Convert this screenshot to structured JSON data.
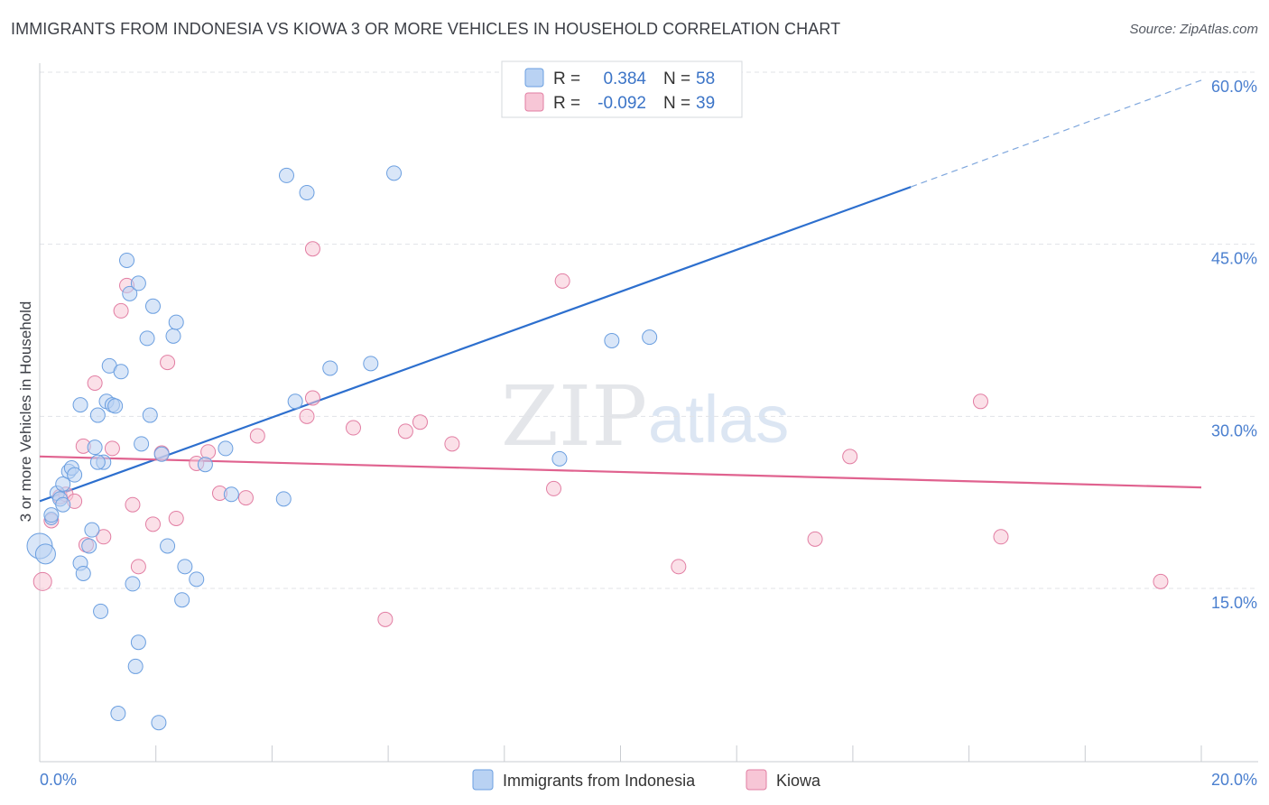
{
  "title": "IMMIGRANTS FROM INDONESIA VS KIOWA 3 OR MORE VEHICLES IN HOUSEHOLD CORRELATION CHART",
  "source": "Source: ZipAtlas.com",
  "watermark": {
    "zip": "ZIP",
    "atlas": "atlas"
  },
  "colors": {
    "blue": "#6b9fe0",
    "blue_fill": "#b9d2f3",
    "pink": "#e27ea3",
    "pink_fill": "#f7c6d6",
    "blue_line": "#2d6fce",
    "pink_line": "#e0628f"
  },
  "legend": {
    "rows": [
      {
        "r_label": "R =",
        "r_value": "0.384",
        "n_label": "N =",
        "n_value": "58"
      },
      {
        "r_label": "R =",
        "r_value": "-0.092",
        "n_label": "N =",
        "n_value": "39"
      }
    ]
  },
  "bottom_legend": [
    "Immigrants from Indonesia",
    "Kiowa"
  ],
  "chart_data": {
    "type": "scatter",
    "title": "IMMIGRANTS FROM INDONESIA VS KIOWA 3 OR MORE VEHICLES IN HOUSEHOLD CORRELATION CHART",
    "xlabel": "",
    "ylabel": "3 or more Vehicles in Household",
    "xlim": [
      0,
      20
    ],
    "ylim": [
      0,
      61
    ],
    "x_tick_labels": [
      "0.0%",
      "20.0%"
    ],
    "y_ticks": [
      15,
      30,
      45,
      60
    ],
    "y_tick_labels": [
      "15.0%",
      "30.0%",
      "45.0%",
      "60.0%"
    ],
    "series": [
      {
        "name": "Immigrants from Indonesia",
        "r": 0.384,
        "n": 58,
        "trend": {
          "x0": 0,
          "y0": 22.6,
          "x1": 15.0,
          "y1": 50.0,
          "dash_x1": 20,
          "dash_y1": 59.3
        },
        "points": [
          [
            0.0,
            18.7,
            14
          ],
          [
            0.1,
            18.0,
            11
          ],
          [
            0.2,
            21.1,
            7
          ],
          [
            0.2,
            21.4,
            8
          ],
          [
            0.3,
            23.3,
            8
          ],
          [
            0.35,
            22.8,
            8
          ],
          [
            0.4,
            22.3,
            8
          ],
          [
            0.4,
            24.1,
            8
          ],
          [
            0.5,
            25.2,
            8
          ],
          [
            0.55,
            25.5,
            8
          ],
          [
            0.6,
            24.9,
            8
          ],
          [
            0.7,
            31.0,
            8
          ],
          [
            0.7,
            17.2,
            8
          ],
          [
            0.75,
            16.3,
            8
          ],
          [
            0.85,
            18.7,
            8
          ],
          [
            0.9,
            20.1,
            8
          ],
          [
            0.95,
            27.3,
            8
          ],
          [
            1.0,
            30.1,
            8
          ],
          [
            1.05,
            13.0,
            8
          ],
          [
            1.1,
            26.0,
            8
          ],
          [
            1.15,
            31.3,
            8
          ],
          [
            1.2,
            34.4,
            8
          ],
          [
            1.25,
            31.0,
            8
          ],
          [
            1.3,
            30.9,
            8
          ],
          [
            1.35,
            4.1,
            8
          ],
          [
            1.4,
            33.9,
            8
          ],
          [
            1.5,
            43.6,
            8
          ],
          [
            1.55,
            40.7,
            8
          ],
          [
            1.6,
            15.4,
            8
          ],
          [
            1.65,
            8.2,
            8
          ],
          [
            1.7,
            10.3,
            8
          ],
          [
            1.7,
            41.6,
            8
          ],
          [
            1.75,
            27.6,
            8
          ],
          [
            1.85,
            36.8,
            8
          ],
          [
            1.9,
            30.1,
            8
          ],
          [
            1.95,
            39.6,
            8
          ],
          [
            2.05,
            3.3,
            8
          ],
          [
            2.1,
            26.7,
            8
          ],
          [
            2.2,
            18.7,
            8
          ],
          [
            2.3,
            37.0,
            8
          ],
          [
            2.35,
            38.2,
            8
          ],
          [
            2.45,
            14.0,
            8
          ],
          [
            2.5,
            16.9,
            8
          ],
          [
            2.7,
            15.8,
            8
          ],
          [
            2.85,
            25.8,
            8
          ],
          [
            3.2,
            27.2,
            8
          ],
          [
            3.3,
            23.2,
            8
          ],
          [
            4.2,
            22.8,
            8
          ],
          [
            4.25,
            51.0,
            8
          ],
          [
            4.4,
            31.3,
            8
          ],
          [
            4.6,
            49.5,
            8
          ],
          [
            5.0,
            34.2,
            8
          ],
          [
            5.7,
            34.6,
            8
          ],
          [
            6.1,
            51.2,
            8
          ],
          [
            8.95,
            26.3,
            8
          ],
          [
            9.85,
            36.6,
            8
          ],
          [
            10.5,
            36.9,
            8
          ],
          [
            1.0,
            26.0,
            8
          ]
        ]
      },
      {
        "name": "Kiowa",
        "r": -0.092,
        "n": 39,
        "trend": {
          "x0": 0,
          "y0": 26.5,
          "x1": 20,
          "y1": 23.8
        },
        "points": [
          [
            0.05,
            15.6,
            10
          ],
          [
            0.2,
            20.9,
            8
          ],
          [
            0.35,
            23.0,
            8
          ],
          [
            0.45,
            23.2,
            8
          ],
          [
            0.6,
            22.6,
            8
          ],
          [
            0.75,
            27.4,
            8
          ],
          [
            0.8,
            18.8,
            8
          ],
          [
            0.95,
            32.9,
            8
          ],
          [
            1.1,
            19.5,
            8
          ],
          [
            1.25,
            27.2,
            8
          ],
          [
            1.4,
            39.2,
            8
          ],
          [
            1.5,
            41.4,
            8
          ],
          [
            1.6,
            22.3,
            8
          ],
          [
            1.7,
            16.9,
            8
          ],
          [
            1.95,
            20.6,
            8
          ],
          [
            2.1,
            26.8,
            8
          ],
          [
            2.2,
            34.7,
            8
          ],
          [
            2.35,
            21.1,
            8
          ],
          [
            2.7,
            25.9,
            8
          ],
          [
            2.9,
            26.9,
            8
          ],
          [
            3.1,
            23.3,
            8
          ],
          [
            3.55,
            22.9,
            8
          ],
          [
            3.75,
            28.3,
            8
          ],
          [
            4.6,
            30.0,
            8
          ],
          [
            4.7,
            31.6,
            8
          ],
          [
            4.7,
            44.6,
            8
          ],
          [
            5.4,
            29.0,
            8
          ],
          [
            5.95,
            12.3,
            8
          ],
          [
            6.3,
            28.7,
            8
          ],
          [
            6.55,
            29.5,
            8
          ],
          [
            7.1,
            27.6,
            8
          ],
          [
            8.85,
            23.7,
            8
          ],
          [
            9.0,
            41.8,
            8
          ],
          [
            11.0,
            16.9,
            8
          ],
          [
            13.35,
            19.3,
            8
          ],
          [
            13.95,
            26.5,
            8
          ],
          [
            16.2,
            31.3,
            8
          ],
          [
            16.55,
            19.5,
            8
          ],
          [
            19.3,
            15.6,
            8
          ]
        ]
      }
    ]
  }
}
